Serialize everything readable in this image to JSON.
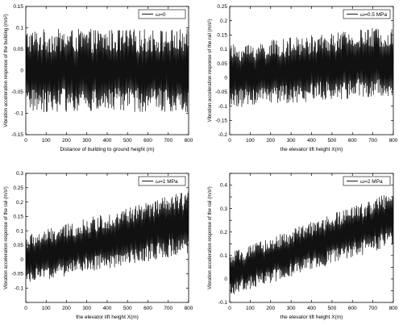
{
  "chart_data": [
    {
      "type": "line",
      "panel": "top-left",
      "xlabel": "Distance of building to ground height (m)",
      "ylabel": "Vibration acceleration response of the building (m/s²)",
      "xlim": [
        0,
        800
      ],
      "ylim": [
        -0.15,
        0.15
      ],
      "xticks": [
        0,
        100,
        200,
        300,
        400,
        500,
        600,
        700,
        800
      ],
      "xtick_labels": [
        "0",
        "100",
        "200",
        "300",
        "400",
        "500",
        "600",
        "700",
        "800"
      ],
      "yticks": [
        -0.15,
        -0.1,
        -0.05,
        0,
        0.05,
        0.1,
        0.15
      ],
      "ytick_labels": [
        "-0.15",
        "-0.1",
        "-0.05",
        "0",
        "0.05",
        "0.1",
        "0.15"
      ],
      "legend": {
        "label": "ω=0",
        "placement": "top-right"
      },
      "series": [
        {
          "name": "ω=0",
          "envelope_mean": {
            "x": [
              0,
              800
            ],
            "y": [
              0,
              0
            ]
          },
          "amplitude": {
            "x": [
              0,
              800
            ],
            "y": [
              0.075,
              0.075
            ]
          }
        }
      ]
    },
    {
      "type": "line",
      "panel": "top-right",
      "xlabel": "the elevator lift height X(m)",
      "ylabel": "Vibration acceleration response of the rail (m/s²)",
      "xlim": [
        0,
        800
      ],
      "ylim": [
        -0.2,
        0.25
      ],
      "xticks": [
        0,
        100,
        200,
        300,
        400,
        500,
        600,
        700,
        800
      ],
      "xtick_labels": [
        "0",
        "100",
        "200",
        "300",
        "400",
        "500",
        "600",
        "700",
        "800"
      ],
      "yticks": [
        -0.2,
        -0.15,
        -0.1,
        -0.05,
        0,
        0.05,
        0.1,
        0.15,
        0.2,
        0.25
      ],
      "ytick_labels": [
        "-0.2",
        "-0.15",
        "-0.1",
        "-0.05",
        "0",
        "0.05",
        "0.1",
        "0.15",
        "0.2",
        "0.25"
      ],
      "legend": {
        "label": "ω=0.5 MPa",
        "placement": "top-right"
      },
      "series": [
        {
          "name": "ω=0.5 MPa",
          "envelope_mean": {
            "x": [
              0,
              800
            ],
            "y": [
              0.005,
              0.06
            ]
          },
          "amplitude": {
            "x": [
              0,
              800
            ],
            "y": [
              0.085,
              0.095
            ]
          }
        }
      ]
    },
    {
      "type": "line",
      "panel": "bottom-left",
      "xlabel": "the elevator lift height X(m)",
      "ylabel": "Vibration acceleration response of the rail (m/s²)",
      "xlim": [
        0,
        800
      ],
      "ylim": [
        -0.15,
        0.3
      ],
      "xticks": [
        0,
        100,
        200,
        300,
        400,
        500,
        600,
        700,
        800
      ],
      "xtick_labels": [
        "0",
        "100",
        "200",
        "300",
        "400",
        "500",
        "600",
        "700",
        "800"
      ],
      "yticks": [
        -0.15,
        -0.1,
        -0.05,
        0,
        0.05,
        0.1,
        0.15,
        0.2,
        0.25,
        0.3
      ],
      "ytick_labels": [
        "",
        "-0.1",
        "-0.05",
        "0",
        "0.05",
        "0.1",
        "0.15",
        "0.2",
        "0.25",
        "0.3"
      ],
      "legend": {
        "label": "ω=1 MPa",
        "placement": "top-right"
      },
      "series": [
        {
          "name": "ω=1 MPa",
          "envelope_mean": {
            "x": [
              0,
              800
            ],
            "y": [
              0.0,
              0.13
            ]
          },
          "amplitude": {
            "x": [
              0,
              800
            ],
            "y": [
              0.065,
              0.085
            ]
          }
        }
      ]
    },
    {
      "type": "line",
      "panel": "bottom-right",
      "xlabel": "the elevator lift height X(m)",
      "ylabel": "Vibration acceleration response of the rail (m/s²)",
      "xlim": [
        0,
        800
      ],
      "ylim": [
        -0.1,
        0.45
      ],
      "xticks": [
        0,
        100,
        200,
        300,
        400,
        500,
        600,
        700,
        800
      ],
      "xtick_labels": [
        "0",
        "100",
        "200",
        "300",
        "400",
        "500",
        "600",
        "700",
        "800"
      ],
      "yticks": [
        -0.1,
        -0.05,
        0,
        0.05,
        0.1,
        0.15,
        0.2,
        0.25,
        0.3,
        0.35,
        0.4,
        0.45
      ],
      "ytick_labels": [
        "-0.1",
        "",
        "0",
        "",
        "0.1",
        "",
        "0.2",
        "",
        "0.3",
        "",
        "0.4",
        ""
      ],
      "legend": {
        "label": "ω=2 MPa",
        "placement": "top-right"
      },
      "series": [
        {
          "name": "ω=2 MPa",
          "envelope_mean": {
            "x": [
              0,
              800
            ],
            "y": [
              0.02,
              0.26
            ]
          },
          "amplitude": {
            "x": [
              0,
              800
            ],
            "y": [
              0.07,
              0.09
            ]
          }
        }
      ]
    }
  ]
}
